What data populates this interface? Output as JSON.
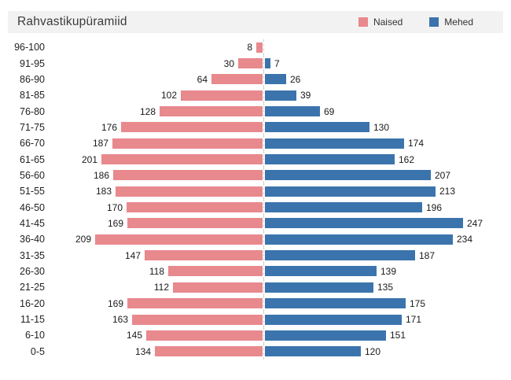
{
  "header": {
    "title": "Rahvastikupüramiid"
  },
  "legend": [
    {
      "label": "Naised",
      "color": "#e8898d"
    },
    {
      "label": "Mehed",
      "color": "#3b74ad"
    }
  ],
  "chart_data": {
    "type": "bar",
    "subtype": "population-pyramid",
    "orientation": "horizontal",
    "title": "Rahvastikupüramiid",
    "grid": "dashed center axis only",
    "legend_position": "top-right",
    "value_labels": "shown at outer end of each bar",
    "categories": [
      "96-100",
      "91-95",
      "86-90",
      "81-85",
      "76-80",
      "71-75",
      "66-70",
      "61-65",
      "56-60",
      "51-55",
      "46-50",
      "41-45",
      "36-40",
      "31-35",
      "26-30",
      "21-25",
      "16-20",
      "11-15",
      "6-10",
      "0-5"
    ],
    "series": [
      {
        "name": "Naised",
        "side": "left",
        "color": "#e8898d",
        "values": [
          8,
          30,
          64,
          102,
          128,
          176,
          187,
          201,
          186,
          183,
          170,
          169,
          209,
          147,
          118,
          112,
          169,
          163,
          145,
          134
        ]
      },
      {
        "name": "Mehed",
        "side": "right",
        "color": "#3b74ad",
        "values": [
          null,
          7,
          26,
          39,
          69,
          130,
          174,
          162,
          207,
          213,
          196,
          247,
          234,
          187,
          139,
          135,
          175,
          171,
          151,
          120
        ]
      }
    ]
  }
}
